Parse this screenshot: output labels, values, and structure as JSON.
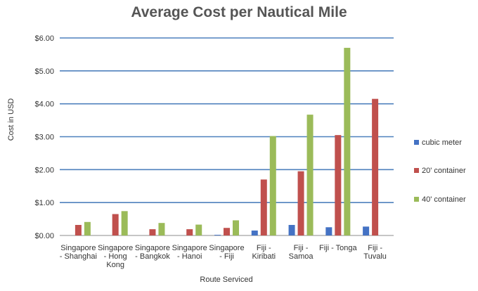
{
  "chart_data": {
    "type": "bar",
    "title": "Average Cost per Nautical Mile",
    "xlabel": "Route Serviced",
    "ylabel": "Cost in USD",
    "ylim": [
      0,
      6
    ],
    "yticks": [
      "$0.00",
      "$1.00",
      "$2.00",
      "$3.00",
      "$4.00",
      "$5.00",
      "$6.00"
    ],
    "categories": [
      [
        "Singapore",
        "- Shanghai"
      ],
      [
        "Singapore",
        "- Hong",
        "Kong"
      ],
      [
        "Singapore",
        "- Bangkok"
      ],
      [
        "Singapore",
        "- Hanoi"
      ],
      [
        "Singapore",
        "- Fiji"
      ],
      [
        "Fiji -",
        "Kiribati"
      ],
      [
        "Fiji -",
        "Samoa"
      ],
      [
        "Fiji - Tonga"
      ],
      [
        "Fiji -",
        "Tuvalu"
      ]
    ],
    "series": [
      {
        "name": "cubic meter",
        "color": "#4472C4",
        "values": [
          0.0,
          0.0,
          0.0,
          0.0,
          0.02,
          0.15,
          0.32,
          0.25,
          0.27
        ]
      },
      {
        "name": "20' container",
        "color": "#C0504D",
        "values": [
          0.32,
          0.65,
          0.19,
          0.19,
          0.23,
          1.7,
          1.95,
          3.05,
          4.15
        ]
      },
      {
        "name": "40' container",
        "color": "#9BBB59",
        "values": [
          0.41,
          0.74,
          0.38,
          0.33,
          0.46,
          3.02,
          3.67,
          5.7,
          0.0
        ]
      }
    ],
    "grid": true,
    "legend": "right"
  }
}
